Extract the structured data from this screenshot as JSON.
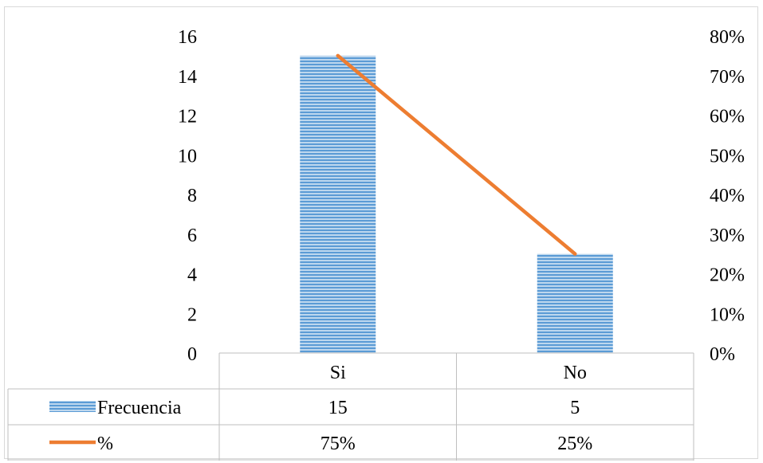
{
  "chart_data": {
    "type": "bar",
    "categories": [
      "Si",
      "No"
    ],
    "series": [
      {
        "name": "Frecuencia",
        "type": "bar",
        "axis": "left",
        "values": [
          15,
          5
        ],
        "color": "#5b9bd5",
        "pattern": "horizontal-stripes"
      },
      {
        "name": "%",
        "type": "line",
        "axis": "right",
        "values": [
          0.75,
          0.25
        ],
        "color": "#ed7d31"
      }
    ],
    "left_axis": {
      "min": 0,
      "max": 16,
      "step": 2,
      "ticks": [
        "0",
        "2",
        "4",
        "6",
        "8",
        "10",
        "12",
        "14",
        "16"
      ]
    },
    "right_axis": {
      "min": 0,
      "max": 0.8,
      "step": 0.1,
      "ticks": [
        "0%",
        "10%",
        "20%",
        "30%",
        "40%",
        "50%",
        "60%",
        "70%",
        "80%"
      ]
    },
    "data_table": {
      "rows": [
        {
          "label": "Frecuencia",
          "values": [
            "15",
            "5"
          ]
        },
        {
          "label": "%",
          "values": [
            "75%",
            "25%"
          ]
        }
      ]
    },
    "grid": false
  }
}
